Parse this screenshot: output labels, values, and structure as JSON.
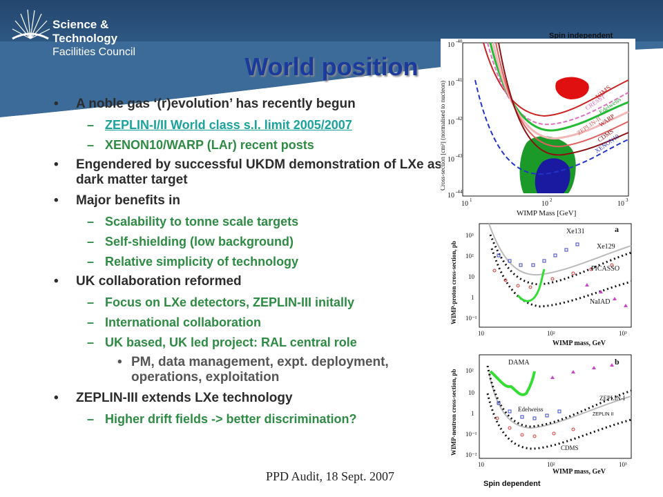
{
  "header": {
    "org_line1": "Science & Technology",
    "org_line2": "Facilities Council"
  },
  "title": "World position",
  "bullets": [
    {
      "level": 1,
      "text": "A noble gas ‘(r)evolution’ has recently begun"
    },
    {
      "level": 2,
      "text": "ZEPLIN-I/II World class s.I. limit 2005/2007",
      "link": true
    },
    {
      "level": 2,
      "text": "XENON10/WARP (LAr) recent posts"
    },
    {
      "level": 1,
      "text": "Engendered by successful UKDM demonstration of LXe as a dark matter target"
    },
    {
      "level": 1,
      "text": "Major benefits in"
    },
    {
      "level": 2,
      "text": "Scalability to tonne scale targets"
    },
    {
      "level": 2,
      "text": "Self-shielding (low background)"
    },
    {
      "level": 2,
      "text": "Relative simplicity of technology"
    },
    {
      "level": 1,
      "text": "UK collaboration reformed"
    },
    {
      "level": 2,
      "text": "Focus on LXe detectors, ZEPLIN-III initally"
    },
    {
      "level": 2,
      "text": "International collaboration"
    },
    {
      "level": 2,
      "text": "UK based, UK led project: RAL central role"
    },
    {
      "level": 3,
      "text": "PM, data management, expt. deployment, operations, exploitation"
    },
    {
      "level": 1,
      "text": "ZEPLIN-III extends LXe technology"
    },
    {
      "level": 2,
      "text": "Higher drift fields -> better discrimination?"
    }
  ],
  "footer": "PPD Audit, 18 Sept. 2007",
  "figures": {
    "spin_independent": {
      "caption": "Spin independent",
      "ylabel": "Cross-section [cm²] (normalised to nucleon)",
      "xlabel": "WIMP Mass [GeV]",
      "yticks": [
        "10",
        "10",
        "10",
        "10",
        "10"
      ],
      "yexp": [
        "-40",
        "-41",
        "-42",
        "-43",
        "-44"
      ],
      "xticks": [
        "10",
        "10",
        "10"
      ],
      "xexp": [
        "1",
        "2",
        "3"
      ],
      "labels": [
        "KIMS",
        "CRESST",
        "Edelweiss",
        "WARP",
        "ZEPLIN-II",
        "CDMS",
        "XENON10"
      ]
    },
    "spin_dep_proton": {
      "ylabel": "WIMP-proton cross-section, pb",
      "xlabel": "WIMP mass, GeV",
      "panel": "a",
      "yticks": [
        "10³",
        "10²",
        "10",
        "1",
        "10⁻¹"
      ],
      "xticks": [
        "10",
        "10²",
        "10³"
      ],
      "labels": [
        "Xe131",
        "Xe129",
        "PICASSO",
        "NaIAD"
      ]
    },
    "spin_dep_neutron": {
      "ylabel": "WIMP-neutron cross-section, pb",
      "xlabel": "WIMP mass, GeV",
      "panel": "b",
      "yticks": [
        "10²",
        "10",
        "1",
        "10⁻¹",
        "10⁻²"
      ],
      "xticks": [
        "10",
        "10²",
        "10³"
      ],
      "labels": [
        "DAMA",
        "ZEPLIN-I",
        "Edelweiss",
        "CDMS"
      ],
      "overlay_label": "ZEPLIN II",
      "caption": "Spin dependent"
    }
  },
  "colors": {
    "header": "#2f5a86",
    "title": "#1a3a9c",
    "level1": "#2c2c2c",
    "level2": "#2e8b44",
    "link": "#1aa39c"
  }
}
